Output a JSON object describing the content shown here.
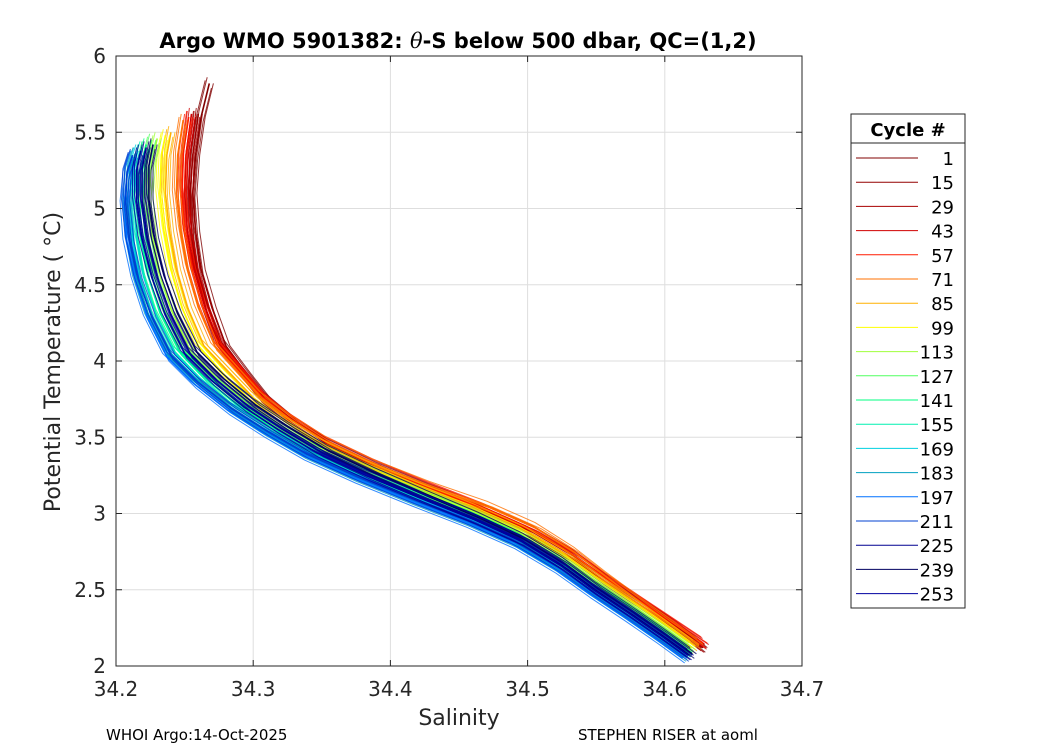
{
  "chart_data": {
    "type": "line",
    "title_prefix": "Argo WMO 5901382: ",
    "title_symbol": "θ",
    "title_suffix": "-S below 500 dbar,  QC=(1,2)",
    "xlabel": "Salinity",
    "ylabel": "Potential Temperature ( °C)",
    "xlim": [
      34.2,
      34.7
    ],
    "ylim": [
      2,
      6
    ],
    "xticks": [
      34.2,
      34.3,
      34.4,
      34.5,
      34.6,
      34.7
    ],
    "xtick_labels": [
      "34.2",
      "34.3",
      "34.4",
      "34.5",
      "34.6",
      "34.7"
    ],
    "yticks": [
      2,
      2.5,
      3,
      3.5,
      4,
      4.5,
      5,
      5.5,
      6
    ],
    "ytick_labels": [
      "2",
      "2.5",
      "3",
      "3.5",
      "4",
      "4.5",
      "5",
      "5.5",
      "6"
    ],
    "grid": true,
    "legend_title": "Cycle #",
    "legend_position": "right",
    "legend": [
      {
        "label": "1",
        "color": "#800000"
      },
      {
        "label": "15",
        "color": "#930000"
      },
      {
        "label": "29",
        "color": "#a80000"
      },
      {
        "label": "43",
        "color": "#d00000"
      },
      {
        "label": "57",
        "color": "#ff1a00"
      },
      {
        "label": "71",
        "color": "#ff7000"
      },
      {
        "label": "85",
        "color": "#ffb000"
      },
      {
        "label": "99",
        "color": "#ffff00"
      },
      {
        "label": "113",
        "color": "#a0ff3c"
      },
      {
        "label": "127",
        "color": "#50ff60"
      },
      {
        "label": "141",
        "color": "#00ff80"
      },
      {
        "label": "155",
        "color": "#00f0b0"
      },
      {
        "label": "169",
        "color": "#00d0e0"
      },
      {
        "label": "183",
        "color": "#00a0c0"
      },
      {
        "label": "197",
        "color": "#0070ff"
      },
      {
        "label": "211",
        "color": "#0040d0"
      },
      {
        "label": "225",
        "color": "#000090"
      },
      {
        "label": "239",
        "color": "#000060"
      },
      {
        "label": "253",
        "color": "#0000a0"
      }
    ],
    "series": [
      {
        "name": "1",
        "color": "#800000",
        "x": [
          34.628,
          34.61,
          34.585,
          34.56,
          34.535,
          34.505,
          34.47,
          34.43,
          34.39,
          34.355,
          34.33,
          34.31,
          34.295,
          34.28,
          34.27,
          34.262,
          34.258,
          34.256,
          34.258,
          34.262,
          34.268
        ],
        "y": [
          2.12,
          2.25,
          2.4,
          2.55,
          2.72,
          2.88,
          3.02,
          3.15,
          3.3,
          3.45,
          3.6,
          3.75,
          3.92,
          4.1,
          4.35,
          4.6,
          4.85,
          5.1,
          5.35,
          5.6,
          5.82
        ]
      },
      {
        "name": "15",
        "color": "#930000",
        "x": [
          34.625,
          34.605,
          34.58,
          34.555,
          34.53,
          34.5,
          34.465,
          34.425,
          34.385,
          34.35,
          34.325,
          34.305,
          34.29,
          34.275,
          34.265,
          34.258,
          34.255,
          34.254,
          34.256,
          34.26
        ],
        "y": [
          2.13,
          2.26,
          2.41,
          2.56,
          2.72,
          2.88,
          3.02,
          3.16,
          3.31,
          3.46,
          3.61,
          3.76,
          3.93,
          4.1,
          4.35,
          4.6,
          4.85,
          5.1,
          5.35,
          5.62
        ]
      },
      {
        "name": "29",
        "color": "#a80000",
        "x": [
          34.627,
          34.607,
          34.582,
          34.557,
          34.532,
          34.502,
          34.467,
          34.427,
          34.387,
          34.352,
          34.327,
          34.307,
          34.292,
          34.277,
          34.267,
          34.259,
          34.255,
          34.253,
          34.254,
          34.258
        ],
        "y": [
          2.12,
          2.25,
          2.4,
          2.55,
          2.71,
          2.87,
          3.01,
          3.15,
          3.3,
          3.45,
          3.6,
          3.75,
          3.92,
          4.1,
          4.35,
          4.6,
          4.85,
          5.1,
          5.35,
          5.6
        ]
      },
      {
        "name": "43",
        "color": "#d00000",
        "x": [
          34.629,
          34.609,
          34.584,
          34.559,
          34.534,
          34.504,
          34.469,
          34.429,
          34.389,
          34.354,
          34.328,
          34.308,
          34.292,
          34.276,
          34.265,
          34.257,
          34.252,
          34.25,
          34.251,
          34.255
        ],
        "y": [
          2.14,
          2.26,
          2.41,
          2.56,
          2.72,
          2.88,
          3.02,
          3.16,
          3.31,
          3.46,
          3.61,
          3.76,
          3.93,
          4.1,
          4.35,
          4.6,
          4.85,
          5.1,
          5.35,
          5.62
        ]
      },
      {
        "name": "57",
        "color": "#ff1a00",
        "x": [
          34.628,
          34.608,
          34.583,
          34.558,
          34.533,
          34.503,
          34.468,
          34.428,
          34.388,
          34.353,
          34.327,
          34.306,
          34.29,
          34.274,
          34.263,
          34.255,
          34.25,
          34.248,
          34.249,
          34.253
        ],
        "y": [
          2.15,
          2.27,
          2.42,
          2.57,
          2.73,
          2.89,
          3.03,
          3.17,
          3.32,
          3.47,
          3.62,
          3.77,
          3.94,
          4.11,
          4.36,
          4.61,
          4.86,
          5.11,
          5.36,
          5.6
        ]
      },
      {
        "name": "71",
        "color": "#ff7000",
        "x": [
          34.625,
          34.605,
          34.582,
          34.558,
          34.535,
          34.507,
          34.472,
          34.43,
          34.39,
          34.355,
          34.328,
          34.306,
          34.289,
          34.272,
          34.26,
          34.252,
          34.247,
          34.244,
          34.245,
          34.249
        ],
        "y": [
          2.14,
          2.27,
          2.42,
          2.58,
          2.74,
          2.9,
          3.04,
          3.17,
          3.31,
          3.46,
          3.61,
          3.76,
          3.93,
          4.1,
          4.35,
          4.6,
          4.85,
          5.1,
          5.35,
          5.58
        ]
      },
      {
        "name": "85",
        "color": "#ffb000",
        "x": [
          34.622,
          34.602,
          34.578,
          34.553,
          34.528,
          34.498,
          34.463,
          34.423,
          34.383,
          34.348,
          34.322,
          34.3,
          34.282,
          34.264,
          34.252,
          34.244,
          34.239,
          34.236,
          34.237,
          34.24
        ],
        "y": [
          2.13,
          2.26,
          2.41,
          2.56,
          2.72,
          2.88,
          3.02,
          3.16,
          3.31,
          3.46,
          3.61,
          3.76,
          3.93,
          4.1,
          4.35,
          4.6,
          4.85,
          5.1,
          5.35,
          5.5
        ]
      },
      {
        "name": "99",
        "color": "#ffff00",
        "x": [
          34.62,
          34.6,
          34.576,
          34.551,
          34.526,
          34.496,
          34.461,
          34.421,
          34.381,
          34.346,
          34.32,
          34.297,
          34.278,
          34.26,
          34.248,
          34.24,
          34.235,
          34.232,
          34.233,
          34.236
        ],
        "y": [
          2.12,
          2.25,
          2.4,
          2.55,
          2.71,
          2.87,
          3.01,
          3.15,
          3.3,
          3.45,
          3.6,
          3.75,
          3.92,
          4.1,
          4.35,
          4.6,
          4.85,
          5.1,
          5.35,
          5.48
        ]
      },
      {
        "name": "113",
        "color": "#a0ff3c",
        "x": [
          34.619,
          34.599,
          34.575,
          34.55,
          34.525,
          34.495,
          34.46,
          34.42,
          34.38,
          34.344,
          34.317,
          34.293,
          34.272,
          34.253,
          34.24,
          34.231,
          34.226,
          34.224,
          34.226,
          34.23
        ],
        "y": [
          2.11,
          2.24,
          2.39,
          2.54,
          2.7,
          2.86,
          3.0,
          3.14,
          3.29,
          3.44,
          3.59,
          3.74,
          3.91,
          4.09,
          4.34,
          4.59,
          4.84,
          5.09,
          5.3,
          5.46
        ]
      },
      {
        "name": "127",
        "color": "#50ff60",
        "x": [
          34.618,
          34.598,
          34.574,
          34.549,
          34.524,
          34.494,
          34.459,
          34.419,
          34.378,
          34.342,
          34.314,
          34.29,
          34.268,
          34.249,
          34.236,
          34.227,
          34.222,
          34.22,
          34.222,
          34.226
        ],
        "y": [
          2.1,
          2.23,
          2.38,
          2.53,
          2.69,
          2.85,
          2.99,
          3.13,
          3.28,
          3.43,
          3.58,
          3.73,
          3.9,
          4.08,
          4.33,
          4.58,
          4.83,
          5.08,
          5.3,
          5.45
        ]
      },
      {
        "name": "141",
        "color": "#00ff80",
        "x": [
          34.617,
          34.597,
          34.573,
          34.548,
          34.523,
          34.493,
          34.458,
          34.418,
          34.377,
          34.34,
          34.312,
          34.287,
          34.265,
          34.246,
          34.232,
          34.223,
          34.218,
          34.216,
          34.218,
          34.222
        ],
        "y": [
          2.09,
          2.22,
          2.37,
          2.52,
          2.68,
          2.84,
          2.98,
          3.12,
          3.27,
          3.42,
          3.57,
          3.72,
          3.89,
          4.07,
          4.32,
          4.57,
          4.82,
          5.07,
          5.28,
          5.42
        ]
      },
      {
        "name": "155",
        "color": "#00f0b0",
        "x": [
          34.616,
          34.596,
          34.572,
          34.547,
          34.522,
          34.492,
          34.457,
          34.417,
          34.376,
          34.339,
          34.31,
          34.285,
          34.262,
          34.243,
          34.229,
          34.22,
          34.215,
          34.213,
          34.215,
          34.219
        ],
        "y": [
          2.08,
          2.21,
          2.36,
          2.51,
          2.67,
          2.83,
          2.97,
          3.11,
          3.26,
          3.41,
          3.56,
          3.71,
          3.88,
          4.06,
          4.31,
          4.56,
          4.81,
          5.06,
          5.27,
          5.4
        ]
      },
      {
        "name": "169",
        "color": "#00d0e0",
        "x": [
          34.615,
          34.595,
          34.571,
          34.546,
          34.521,
          34.491,
          34.456,
          34.416,
          34.375,
          34.338,
          34.309,
          34.283,
          34.26,
          34.24,
          34.226,
          34.217,
          34.212,
          34.21,
          34.212,
          34.216
        ],
        "y": [
          2.07,
          2.2,
          2.35,
          2.5,
          2.66,
          2.82,
          2.96,
          3.1,
          3.25,
          3.4,
          3.55,
          3.7,
          3.87,
          4.05,
          4.3,
          4.55,
          4.8,
          5.05,
          5.26,
          5.38
        ]
      },
      {
        "name": "183",
        "color": "#00a0c0",
        "x": [
          34.614,
          34.594,
          34.57,
          34.545,
          34.52,
          34.49,
          34.455,
          34.415,
          34.374,
          34.337,
          34.308,
          34.282,
          34.258,
          34.238,
          34.224,
          34.215,
          34.21,
          34.208,
          34.21,
          34.214
        ],
        "y": [
          2.06,
          2.19,
          2.34,
          2.49,
          2.65,
          2.81,
          2.95,
          3.09,
          3.24,
          3.39,
          3.54,
          3.69,
          3.86,
          4.04,
          4.29,
          4.54,
          4.79,
          5.04,
          5.25,
          5.36
        ]
      },
      {
        "name": "197",
        "color": "#0070ff",
        "x": [
          34.613,
          34.593,
          34.569,
          34.544,
          34.519,
          34.489,
          34.454,
          34.414,
          34.373,
          34.336,
          34.307,
          34.281,
          34.257,
          34.237,
          34.223,
          34.214,
          34.208,
          34.206,
          34.208,
          34.212
        ],
        "y": [
          2.05,
          2.18,
          2.33,
          2.48,
          2.64,
          2.8,
          2.94,
          3.08,
          3.23,
          3.38,
          3.53,
          3.68,
          3.85,
          4.03,
          4.28,
          4.53,
          4.78,
          5.03,
          5.22,
          5.34
        ]
      },
      {
        "name": "211",
        "color": "#0040d0",
        "x": [
          34.616,
          34.596,
          34.572,
          34.547,
          34.522,
          34.492,
          34.457,
          34.417,
          34.376,
          34.339,
          34.31,
          34.284,
          34.26,
          34.24,
          34.226,
          34.216,
          34.21,
          34.207,
          34.208,
          34.212
        ],
        "y": [
          2.06,
          2.19,
          2.34,
          2.49,
          2.65,
          2.81,
          2.95,
          3.09,
          3.24,
          3.39,
          3.54,
          3.69,
          3.86,
          4.04,
          4.29,
          4.54,
          4.79,
          5.04,
          5.24,
          5.35
        ]
      },
      {
        "name": "225",
        "color": "#000090",
        "x": [
          34.618,
          34.598,
          34.574,
          34.549,
          34.525,
          34.496,
          34.462,
          34.424,
          34.385,
          34.35,
          34.322,
          34.297,
          34.274,
          34.254,
          34.24,
          34.23,
          34.223,
          34.219,
          34.219,
          34.222
        ],
        "y": [
          2.07,
          2.2,
          2.35,
          2.5,
          2.66,
          2.82,
          2.96,
          3.1,
          3.25,
          3.4,
          3.55,
          3.7,
          3.87,
          4.05,
          4.3,
          4.55,
          4.8,
          5.05,
          5.26,
          5.4
        ]
      },
      {
        "name": "239",
        "color": "#000060",
        "x": [
          34.62,
          34.6,
          34.576,
          34.551,
          34.527,
          34.498,
          34.465,
          34.428,
          34.39,
          34.355,
          34.327,
          34.302,
          34.279,
          34.259,
          34.245,
          34.235,
          34.228,
          34.224,
          34.224,
          34.227
        ],
        "y": [
          2.08,
          2.21,
          2.36,
          2.51,
          2.67,
          2.83,
          2.97,
          3.11,
          3.26,
          3.41,
          3.56,
          3.71,
          3.88,
          4.06,
          4.31,
          4.56,
          4.81,
          5.06,
          5.28,
          5.42
        ]
      },
      {
        "name": "253",
        "color": "#0000a0",
        "x": [
          34.617,
          34.597,
          34.573,
          34.548,
          34.524,
          34.495,
          34.461,
          34.422,
          34.382,
          34.346,
          34.318,
          34.293,
          34.27,
          34.25,
          34.236,
          34.226,
          34.219,
          34.215,
          34.215,
          34.218
        ],
        "y": [
          2.07,
          2.2,
          2.35,
          2.5,
          2.66,
          2.82,
          2.96,
          3.1,
          3.25,
          3.4,
          3.55,
          3.7,
          3.87,
          4.05,
          4.3,
          4.55,
          4.8,
          5.05,
          5.25,
          5.38
        ]
      }
    ]
  },
  "footer": {
    "left": "WHOI Argo:14-Oct-2025",
    "right": "STEPHEN RISER at aoml"
  }
}
